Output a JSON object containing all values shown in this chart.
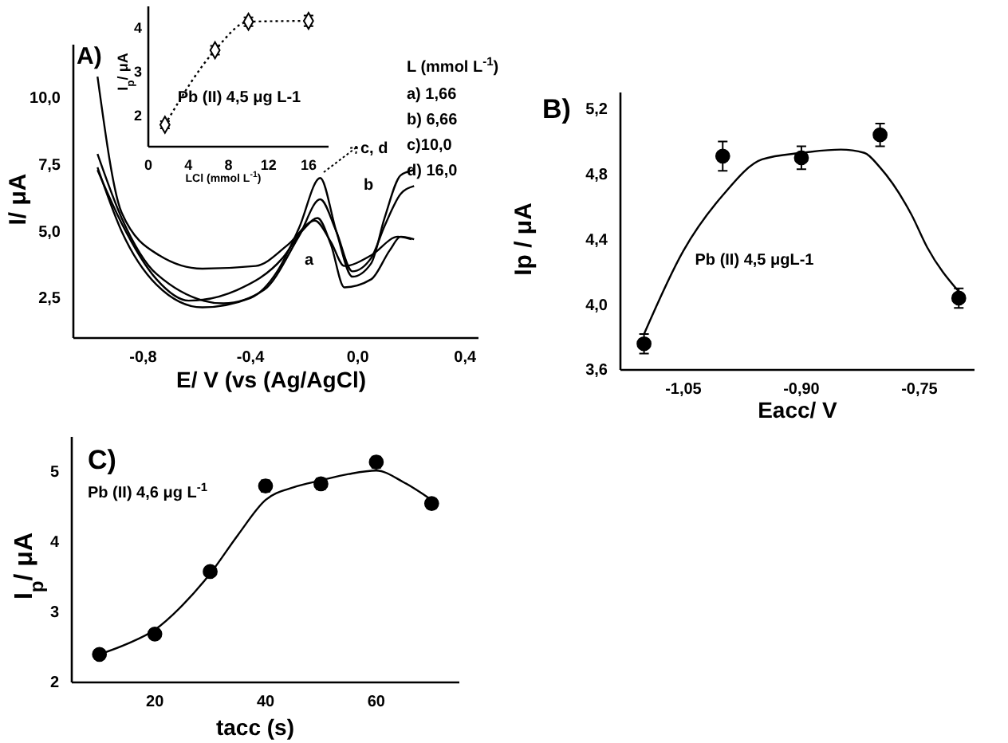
{
  "chart_data": [
    {
      "type": "line",
      "xlabel": "E/ V (vs (Ag/AgCl)",
      "ylabel": "I/ μA",
      "xlim": [
        -1.06,
        0.45
      ],
      "ylim": [
        1.0,
        12.0
      ],
      "xticks": [
        {
          "value": -0.8,
          "label": "-0,8"
        },
        {
          "value": -0.4,
          "label": "-0,4"
        },
        {
          "value": 0,
          "label": "0,0"
        },
        {
          "value": 0.4,
          "label": "0,4"
        }
      ],
      "yticks": [
        {
          "value": 2.5,
          "label": "2,5"
        },
        {
          "value": 5,
          "label": "5,0"
        },
        {
          "value": 7.5,
          "label": "7,5"
        },
        {
          "value": 10,
          "label": "10,0"
        }
      ],
      "series": [
        {
          "color": "#000000",
          "x": [
            -0.97,
            -0.88,
            -0.74,
            -0.58,
            -0.38,
            -0.26,
            -0.16,
            -0.1,
            -0.05,
            0.05,
            0.15,
            0.2
          ],
          "values": [
            10.8,
            5.7,
            4.1,
            3.6,
            3.7,
            4.5,
            5.4,
            4.6,
            3.7,
            4.1,
            4.8,
            4.7
          ]
        },
        {
          "color": "#000000",
          "x": [
            -0.97,
            -0.88,
            -0.75,
            -0.58,
            -0.4,
            -0.3,
            -0.22,
            -0.14,
            -0.08,
            -0.02,
            0.05,
            0.1,
            0.16,
            0.21
          ],
          "values": [
            7.4,
            5.0,
            3.0,
            2.15,
            2.5,
            3.5,
            5.1,
            7.0,
            5.0,
            3.3,
            3.8,
            5.5,
            7.1,
            7.3
          ]
        },
        {
          "color": "#000000",
          "x": [
            -0.97,
            -0.88,
            -0.75,
            -0.5,
            -0.35,
            -0.22,
            -0.14,
            -0.08,
            -0.02,
            0.05,
            0.1,
            0.16,
            0.21
          ],
          "values": [
            7.9,
            5.5,
            3.4,
            2.3,
            2.8,
            4.8,
            6.2,
            5.0,
            3.5,
            4.0,
            5.2,
            6.4,
            6.7
          ]
        },
        {
          "color": "#000000",
          "x": [
            -0.97,
            -0.88,
            -0.75,
            -0.63,
            -0.45,
            -0.28,
            -0.2,
            -0.15,
            -0.1,
            -0.05,
            0.05,
            0.12,
            0.16,
            0.21
          ],
          "values": [
            7.3,
            5.3,
            3.2,
            2.4,
            2.8,
            4.0,
            5.1,
            5.5,
            4.5,
            2.9,
            3.2,
            4.3,
            4.8,
            4.7
          ]
        }
      ],
      "annotations": [
        "A)",
        "L (mmol L$^{-1}$)",
        "a) 1,66",
        "b) 6,66",
        "c)10,0",
        "d) 16,0",
        "a",
        "b",
        "c, d"
      ]
    },
    {
      "type": "line",
      "xlabel": "LCl (mmol L$^{-1}$)",
      "ylabel": "I$_{p}$/ μA",
      "xlim": [
        0,
        18
      ],
      "ylim": [
        1.3,
        4.5
      ],
      "xticks": [
        0,
        4,
        8,
        12,
        16
      ],
      "yticks": [
        2,
        3,
        4
      ],
      "marker": "diamond",
      "series": [
        {
          "color": "#000000",
          "line_style": "dotted",
          "x": [
            1.66,
            6.66,
            10,
            16
          ],
          "values": [
            1.8,
            3.5,
            4.15,
            4.17
          ],
          "errors": [
            0.08,
            0.1,
            0.1,
            0.12
          ]
        }
      ],
      "annotations": [
        "Pb (II) 4,5 μg L-1"
      ]
    },
    {
      "type": "scatter",
      "xlabel": "Eacc/ V",
      "ylabel": "Ip / μA",
      "xlim": [
        -1.13,
        -0.68
      ],
      "ylim": [
        3.6,
        5.3
      ],
      "xticks": [
        {
          "value": -1.05,
          "label": "-1,05"
        },
        {
          "value": -0.9,
          "label": "-0,90"
        },
        {
          "value": -0.75,
          "label": "-0,75"
        }
      ],
      "yticks": [
        {
          "value": 3.6,
          "label": "3,6"
        },
        {
          "value": 4.0,
          "label": "4,0"
        },
        {
          "value": 4.4,
          "label": "4,4"
        },
        {
          "value": 4.8,
          "label": "4,8"
        },
        {
          "value": 5.2,
          "label": "5,2"
        }
      ],
      "series": [
        {
          "type": "line",
          "marker": "none",
          "color": "#000000",
          "x": [
            -1.1,
            -1.05,
            -1.0,
            -0.95,
            -0.9,
            -0.85,
            -0.82,
            -0.8,
            -0.76,
            -0.74,
            -0.7
          ],
          "values": [
            3.82,
            4.33,
            4.67,
            4.89,
            4.93,
            4.95,
            4.93,
            4.84,
            4.55,
            4.35,
            4.08
          ]
        },
        {
          "marker": "circle",
          "color": "#000000",
          "x": [
            -1.1,
            -1.0,
            -0.9,
            -0.8,
            -0.7
          ],
          "values": [
            3.76,
            4.91,
            4.9,
            5.04,
            4.04
          ],
          "errors": [
            0.06,
            0.09,
            0.07,
            0.07,
            0.06
          ]
        }
      ],
      "annotations": [
        "B)",
        "Pb (II) 4,5 μgL-1"
      ]
    },
    {
      "type": "scatter",
      "xlabel": "tacc (s)",
      "ylabel": "I$_{p}$/ μA",
      "xlim": [
        5,
        75
      ],
      "ylim": [
        2,
        5.5
      ],
      "xticks": [
        20,
        40,
        60
      ],
      "yticks": [
        2,
        3,
        4,
        5
      ],
      "series": [
        {
          "type": "line",
          "marker": "none",
          "color": "#000000",
          "x": [
            10,
            15,
            20,
            25,
            30,
            35,
            40,
            45,
            50,
            55,
            60,
            65,
            70
          ],
          "values": [
            2.4,
            2.55,
            2.75,
            3.1,
            3.55,
            4.1,
            4.6,
            4.78,
            4.88,
            4.97,
            5.02,
            4.85,
            4.6
          ]
        },
        {
          "marker": "circle",
          "color": "#000000",
          "x": [
            10,
            20,
            30,
            40,
            50,
            60,
            70
          ],
          "values": [
            2.4,
            2.69,
            3.58,
            4.8,
            4.83,
            5.14,
            4.55
          ],
          "errors": [
            null,
            null,
            null,
            0.08,
            0.08,
            0.08,
            0.07
          ]
        }
      ],
      "annotations": [
        "C)",
        "Pb (II) 4,6 μg L$^{-1}$"
      ]
    }
  ]
}
